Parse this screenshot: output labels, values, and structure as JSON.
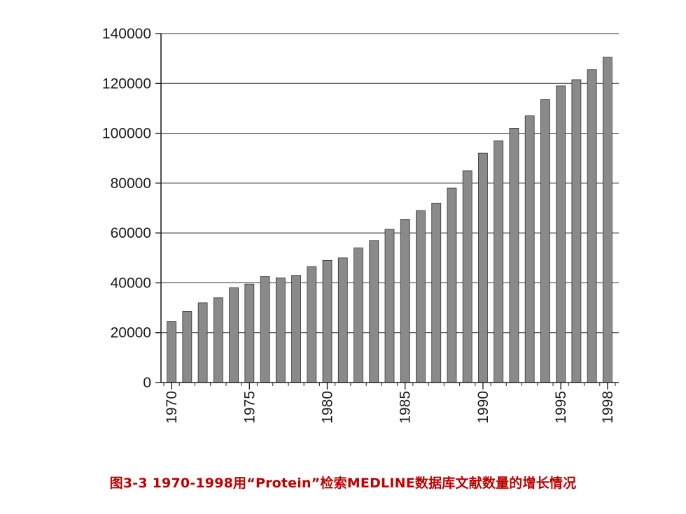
{
  "chart_data": {
    "type": "bar",
    "categories": [
      "1970",
      "1971",
      "1972",
      "1973",
      "1974",
      "1975",
      "1976",
      "1977",
      "1978",
      "1979",
      "1980",
      "1981",
      "1982",
      "1983",
      "1984",
      "1985",
      "1986",
      "1987",
      "1988",
      "1989",
      "1990",
      "1991",
      "1992",
      "1993",
      "1994",
      "1995",
      "1996",
      "1997",
      "1998"
    ],
    "values": [
      24500,
      28500,
      32000,
      34000,
      38000,
      39500,
      42500,
      42000,
      43000,
      46500,
      49000,
      50000,
      54000,
      57000,
      61500,
      65500,
      69000,
      72000,
      78000,
      85000,
      92000,
      97000,
      102000,
      107000,
      113500,
      119000,
      121500,
      125500,
      130500
    ],
    "x_tick_labels": [
      "1970",
      "1975",
      "1980",
      "1985",
      "1990",
      "1995",
      "1998"
    ],
    "y_ticks": [
      0,
      20000,
      40000,
      60000,
      80000,
      100000,
      120000,
      140000
    ],
    "ylim": [
      0,
      140000
    ],
    "grid": true,
    "bar_color": "#8a8a8a"
  },
  "caption": "图3-3   1970-1998用“Protein”检索MEDLINE数据库文献数量的增长情况"
}
